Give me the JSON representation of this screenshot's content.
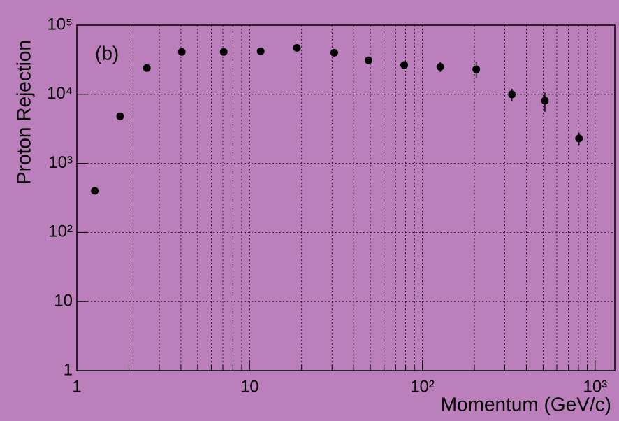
{
  "chart_data": {
    "type": "scatter",
    "annotation": "(b)",
    "x_label": "Momentum (GeV/c)",
    "y_label": "Proton Rejection",
    "x": [
      1.27,
      1.78,
      2.54,
      4.05,
      7.08,
      11.6,
      18.8,
      30.9,
      48.8,
      78.5,
      127,
      205,
      330,
      512,
      807
    ],
    "values": [
      400,
      4800,
      24000,
      41000,
      41000,
      42000,
      47000,
      40000,
      31000,
      26500,
      25000,
      23000,
      10000,
      8100,
      2300
    ],
    "errors": [
      20,
      300,
      1500,
      2500,
      2500,
      2500,
      3000,
      2500,
      2000,
      2000,
      4000,
      6000,
      2000,
      2500,
      500
    ],
    "color": "#000000",
    "log_x": true,
    "log_y": true,
    "grid": true,
    "xlim": [
      1,
      1300
    ],
    "ylim": [
      1,
      100000
    ],
    "xticks": [
      1,
      10,
      {
        "value": 100,
        "label": "10²"
      },
      {
        "value": 1000,
        "label": "10³"
      }
    ],
    "xminorticks": [
      2,
      3,
      4,
      5,
      6,
      7,
      8,
      9,
      20,
      30,
      40,
      50,
      60,
      70,
      80,
      90,
      200,
      300,
      400,
      500,
      600,
      700,
      800,
      900
    ],
    "yticks": [
      1,
      10,
      {
        "value": 100,
        "label": "10²"
      },
      {
        "value": 1000,
        "label": "10³"
      },
      {
        "value": 10000,
        "label": "10⁴"
      },
      {
        "value": 100000,
        "label": "10⁵"
      }
    ]
  }
}
